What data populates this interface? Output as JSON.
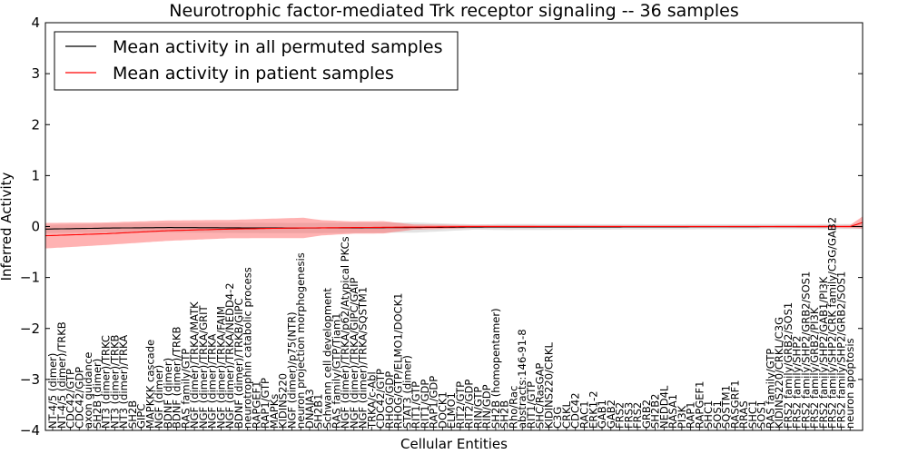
{
  "chart_data": {
    "type": "line",
    "title": "Neurotrophic factor-mediated Trk receptor signaling -- 36 samples",
    "xlabel": "Cellular Entities",
    "ylabel": "Inferred Activity",
    "ylim": [
      -4,
      4
    ],
    "yticks": [
      -4,
      -3,
      -2,
      -1,
      0,
      1,
      2,
      3,
      4
    ],
    "xlim": [
      0,
      133
    ],
    "grid": false,
    "legend_position": "top-left",
    "legend": [
      "Mean activity in all permuted samples",
      "Mean activity in patient samples"
    ],
    "series": [
      {
        "name": "Mean activity in all permuted samples",
        "color": "#000000",
        "keypoints": [
          [
            0,
            -0.05
          ],
          [
            10,
            -0.03
          ],
          [
            20,
            -0.02
          ],
          [
            40,
            -0.03
          ],
          [
            60,
            -0.02
          ],
          [
            70,
            -0.01
          ],
          [
            133,
            0.0
          ]
        ],
        "band": [
          [
            0,
            0.08
          ],
          [
            30,
            0.1
          ],
          [
            60,
            0.1
          ],
          [
            70,
            0.05
          ],
          [
            75,
            0.06
          ],
          [
            100,
            0.05
          ],
          [
            133,
            0.05
          ]
        ]
      },
      {
        "name": "Mean activity in patient samples",
        "color": "#ff0000",
        "keypoints": [
          [
            0,
            -0.18
          ],
          [
            10,
            -0.14
          ],
          [
            20,
            -0.08
          ],
          [
            30,
            -0.05
          ],
          [
            40,
            -0.03
          ],
          [
            50,
            -0.02
          ],
          [
            60,
            -0.01
          ],
          [
            70,
            0.0
          ],
          [
            100,
            0.0
          ],
          [
            131,
            0.0
          ],
          [
            133,
            0.08
          ]
        ],
        "band": [
          [
            0,
            0.25
          ],
          [
            10,
            0.22
          ],
          [
            20,
            0.2
          ],
          [
            30,
            0.18
          ],
          [
            42,
            0.2
          ],
          [
            45,
            0.15
          ],
          [
            50,
            0.12
          ],
          [
            55,
            0.12
          ],
          [
            60,
            0.05
          ],
          [
            70,
            0.03
          ],
          [
            110,
            0.02
          ],
          [
            131,
            0.03
          ],
          [
            133,
            0.12
          ]
        ]
      }
    ],
    "tick_labels": [
      "NT-4/5 (dimer)",
      "NT-4/5 (dimer)/TRKB",
      "CDC42/GTP",
      "CDC42/GDP",
      "axon guidance",
      "SH2B (dimer)",
      "NT3 (dimer)/TRKC",
      "NT3 (dimer)/TRKB",
      "NT3 (dimer)/TRKA",
      "SH2B",
      "GIPC",
      "MAPKKK cascade",
      "NGF (dimer)",
      "BDNF (dimer)",
      "BDNF (dimer)/TRKB",
      "RAS family/GTP",
      "NGF (dimer)/TRKA/MATK",
      "NGF (dimer)/TRKA/GRIT",
      "NGF (dimer)/TRKA",
      "NGF (dimer)/TRKA/FAIM",
      "NGF (dimer)/TRKA/NEDD4-2",
      "BDNF (dimer)/TRKB/GIPC",
      "neurotrophin catabolic process",
      "RAPGEF1",
      "RAP1/GTP",
      "MAPKs",
      "KIDINS220",
      "NGF (dimer)/p75(NTR)",
      "neuron projection morphogenesis",
      "DNAJA3",
      "SH2B1",
      "Schwann cell development",
      "RAS family/GTP/Tiam1",
      "NGF (dimer)/TRKA/p62/Atypical PKCs",
      "NGF (dimer)/TRKA/GIPC/GAIP",
      "NGF (dimer)/TRKA/SQSTM1",
      "TRKA/c-Abl",
      "CDC42/GTP",
      "RHOG/GDP",
      "RHOG/GTP/ELMO1/DOCK1",
      "STAT3 (dimer)",
      "RIT1/GTP",
      "RIT1/GDP",
      "RAP1/GDP",
      "DOCK1",
      "ELMO1",
      "RIT2/GTP",
      "RIT2/GDP",
      "RIN/GTP",
      "RIN/GDP",
      "SH2B (homopentamer)",
      "SH2B",
      "Rho/Rac",
      "abstracts:146-91-8",
      "RIT1/GTP",
      "SHC/RasGAP",
      "KIDINS220/CRKL",
      "C3G",
      "CRKL",
      "CDC42",
      "RAC1",
      "ERK1-2",
      "GAB1",
      "GAB2",
      "FRS2",
      "FRS3",
      "FRS2",
      "GRB2",
      "SH2B2",
      "NEDD4L",
      "RASA1",
      "PI3K",
      "RAP1",
      "RAPGEF1",
      "SHC1",
      "SOS1",
      "SQSTM1",
      "RASGRF1",
      "RRAS",
      "SHC1",
      "SOS1",
      "RAS family/GTP",
      "KIDINS220/CRKL/C3G",
      "FRS2 family/GRB2/SOS1",
      "FRS2 family/SHP2",
      "FRS2 family/SHP2/GRB2/SOS1",
      "FRS2 family/GRB2/PI3K",
      "FRS2 family/SHP2/GAB1/PI3K",
      "FRS2 family/SHP2/CRK family/C3G/GAB2",
      "FRS2 family/SHP2/GRB2/SOS1",
      "neuron apoptosis"
    ]
  }
}
